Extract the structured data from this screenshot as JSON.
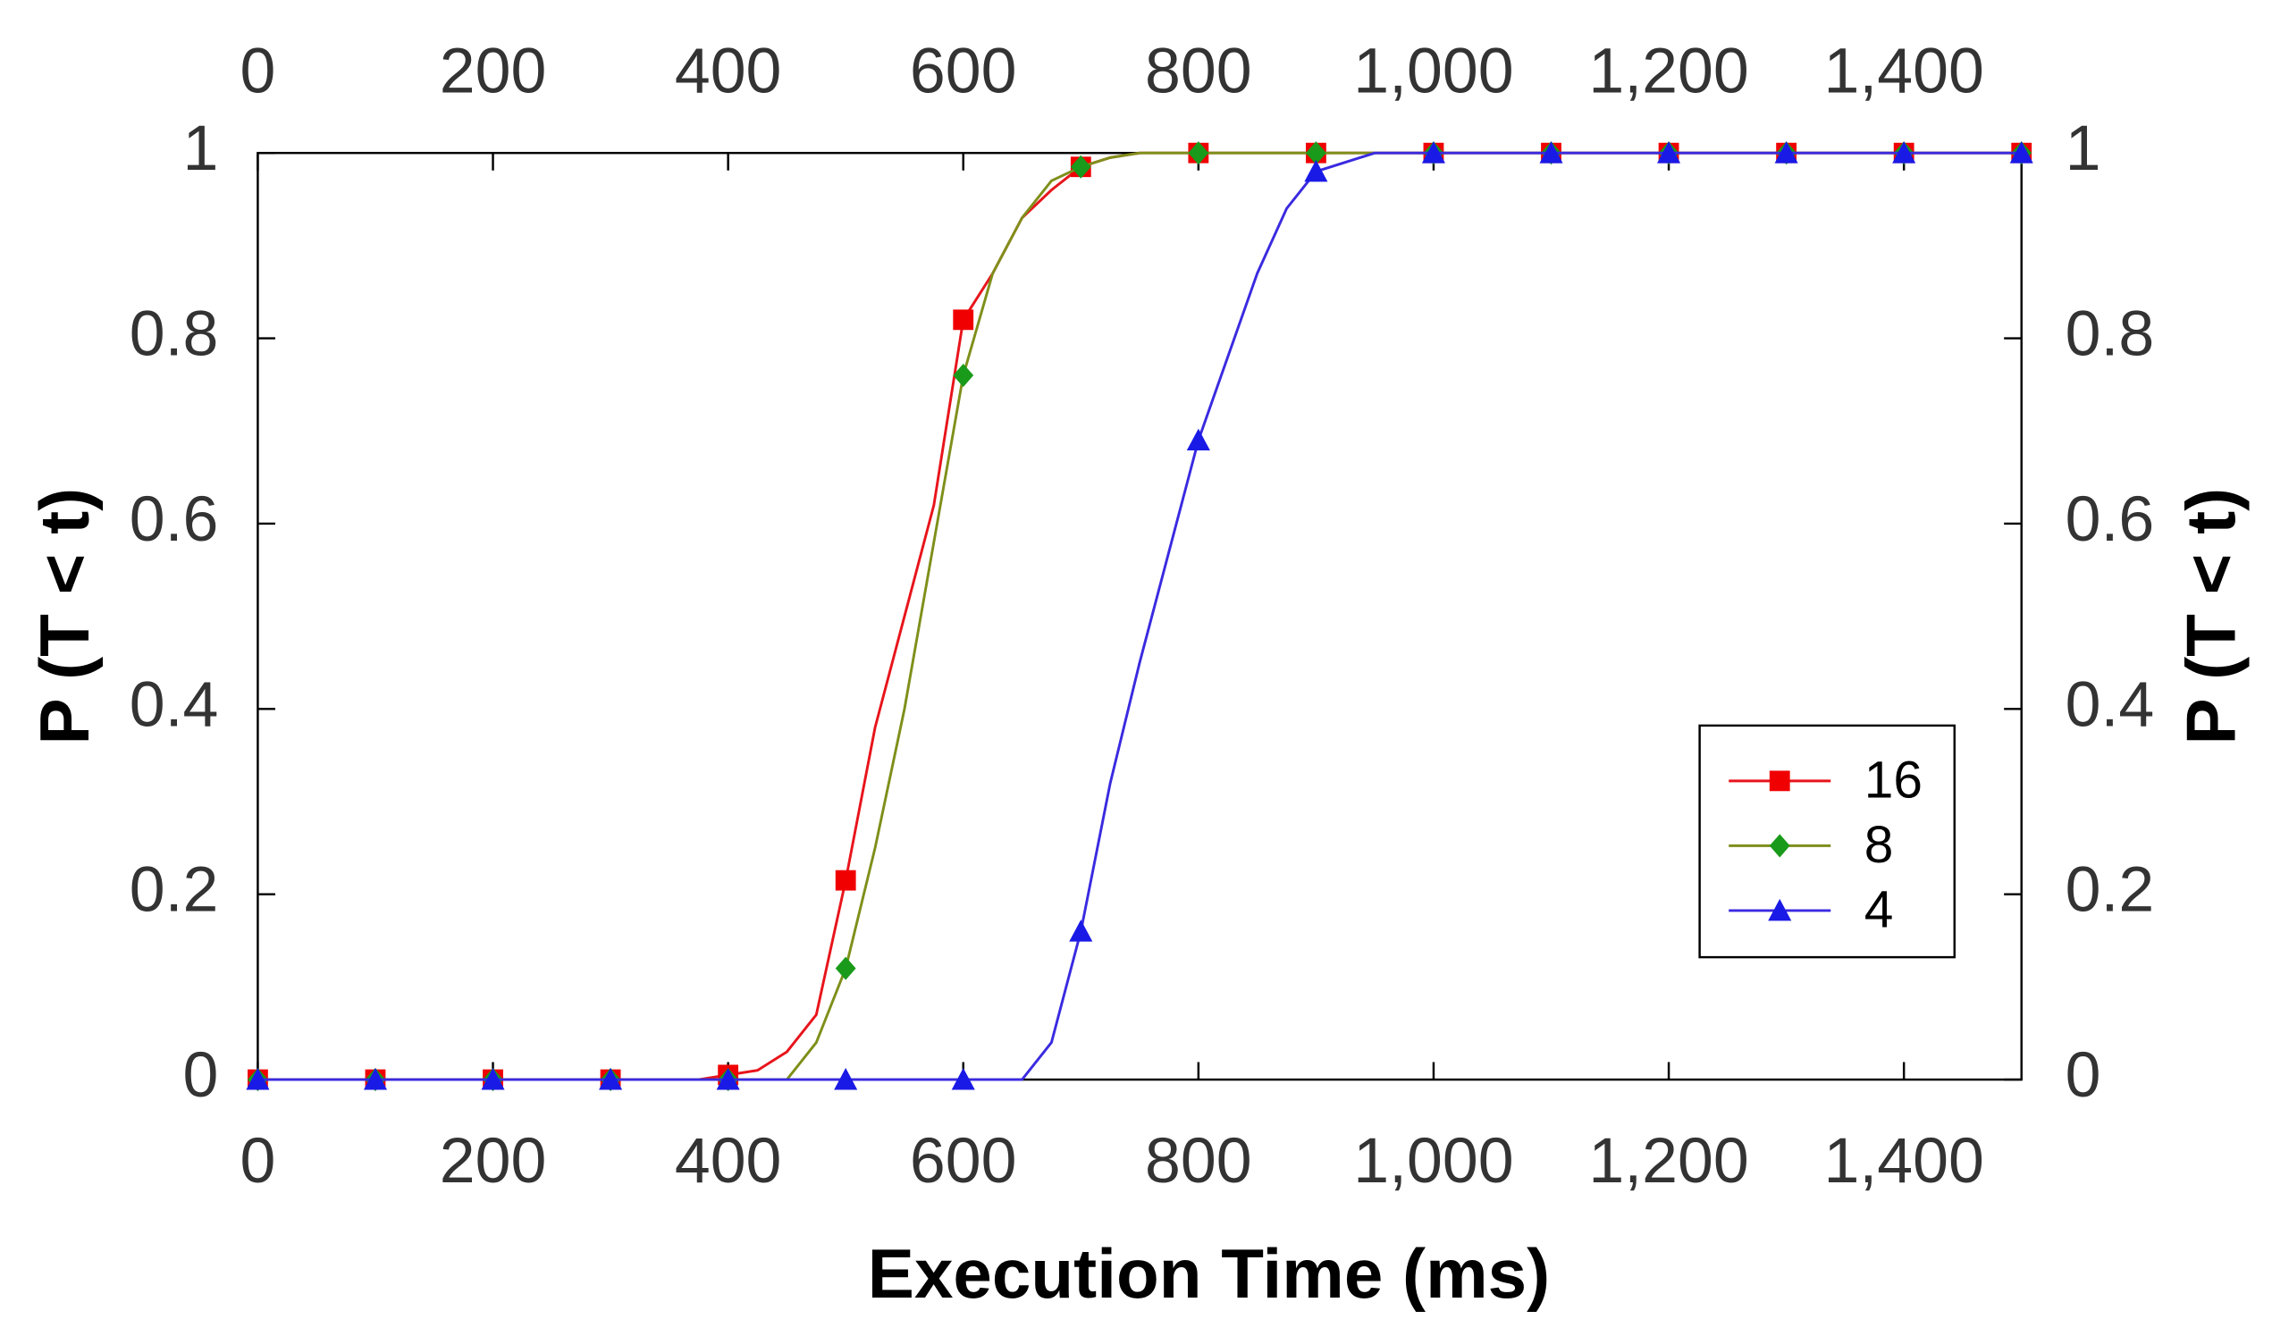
{
  "chart_data": {
    "type": "line",
    "xlabel": "Execution Time (ms)",
    "ylabel": "P (T < t)",
    "y2label": "P (T < t)",
    "x": [
      0,
      25,
      50,
      75,
      100,
      125,
      150,
      175,
      200,
      225,
      250,
      275,
      300,
      325,
      350,
      375,
      400,
      425,
      450,
      475,
      500,
      525,
      550,
      575,
      600,
      625,
      650,
      675,
      700,
      725,
      750,
      775,
      800,
      825,
      850,
      875,
      900,
      925,
      950,
      975,
      1000,
      1025,
      1050,
      1075,
      1100,
      1125,
      1150,
      1175,
      1200,
      1225,
      1250,
      1275,
      1300,
      1325,
      1350,
      1375,
      1400,
      1425,
      1450,
      1475,
      1500
    ],
    "series": [
      {
        "name": "16",
        "color": "#e8141b",
        "marker_color": "#f00000",
        "marker": "square",
        "values": [
          0,
          0,
          0,
          0,
          0,
          0,
          0,
          0,
          0,
          0,
          0,
          0,
          0,
          0,
          0,
          0,
          0.005,
          0.01,
          0.03,
          0.07,
          0.215,
          0.38,
          0.5,
          0.62,
          0.82,
          0.87,
          0.93,
          0.96,
          0.985,
          0.995,
          1,
          1,
          1,
          1,
          1,
          1,
          1,
          1,
          1,
          1,
          1,
          1,
          1,
          1,
          1,
          1,
          1,
          1,
          1,
          1,
          1,
          1,
          1,
          1,
          1,
          1,
          1,
          1,
          1,
          1,
          1
        ]
      },
      {
        "name": "8",
        "color": "#7f8f1a",
        "marker_color": "#1a9a1a",
        "marker": "diamond",
        "values": [
          0,
          0,
          0,
          0,
          0,
          0,
          0,
          0,
          0,
          0,
          0,
          0,
          0,
          0,
          0,
          0,
          0,
          0,
          0,
          0.04,
          0.12,
          0.25,
          0.4,
          0.58,
          0.76,
          0.87,
          0.93,
          0.97,
          0.985,
          0.995,
          1,
          1,
          1,
          1,
          1,
          1,
          1,
          1,
          1,
          1,
          1,
          1,
          1,
          1,
          1,
          1,
          1,
          1,
          1,
          1,
          1,
          1,
          1,
          1,
          1,
          1,
          1,
          1,
          1,
          1,
          1
        ]
      },
      {
        "name": "4",
        "color": "#3a2ae0",
        "marker_color": "#1a1ae6",
        "marker": "triangle",
        "values": [
          0,
          0,
          0,
          0,
          0,
          0,
          0,
          0,
          0,
          0,
          0,
          0,
          0,
          0,
          0,
          0,
          0,
          0,
          0,
          0,
          0,
          0,
          0,
          0,
          0,
          0,
          0,
          0.04,
          0.16,
          0.32,
          0.45,
          0.57,
          0.69,
          0.78,
          0.87,
          0.94,
          0.98,
          0.99,
          1,
          1,
          1,
          1,
          1,
          1,
          1,
          1,
          1,
          1,
          1,
          1,
          1,
          1,
          1,
          1,
          1,
          1,
          1,
          1,
          1,
          1,
          1
        ]
      }
    ],
    "xlim": [
      0,
      1500
    ],
    "xticks": [
      0,
      200,
      400,
      600,
      800,
      {
        "value": 1000,
        "label": "1,000"
      },
      {
        "value": 1200,
        "label": "1,200"
      },
      {
        "value": 1400,
        "label": "1,400"
      }
    ],
    "x2lim": [
      0,
      1500
    ],
    "x2ticks": [
      0,
      200,
      400,
      600,
      800,
      {
        "value": 1000,
        "label": "1,000"
      },
      {
        "value": 1200,
        "label": "1,200"
      },
      {
        "value": 1400,
        "label": "1,400"
      }
    ],
    "ylim": [
      0,
      1
    ],
    "yticks": [
      0,
      0.2,
      0.4,
      0.6,
      0.8,
      1
    ],
    "y2lim": [
      0,
      1
    ],
    "y2ticks": [
      0,
      0.2,
      0.4,
      0.6,
      0.8,
      1
    ],
    "legend": "lower right"
  }
}
